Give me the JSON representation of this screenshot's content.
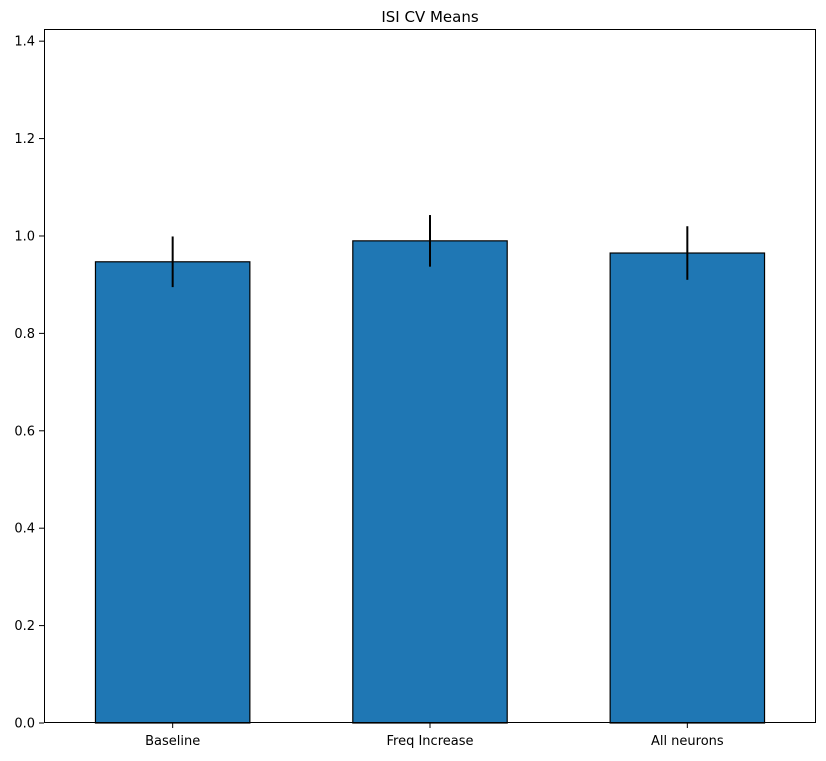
{
  "chart_data": {
    "type": "bar",
    "title": "ISI CV Means",
    "xlabel": "",
    "ylabel": "",
    "categories": [
      "Baseline",
      "Freq Increase",
      "All neurons"
    ],
    "values": [
      0.947,
      0.99,
      0.965
    ],
    "errors": [
      0.052,
      0.053,
      0.055
    ],
    "ylim": [
      0,
      1.425
    ],
    "yticks": [
      0.0,
      0.2,
      0.4,
      0.6,
      0.8,
      1.0,
      1.2,
      1.4
    ],
    "ytick_labels": [
      "0.0",
      "0.2",
      "0.4",
      "0.6",
      "0.8",
      "1.0",
      "1.2",
      "1.4"
    ],
    "grid": false,
    "bar_color": "#1f77b4",
    "edge_color": "#000000",
    "error_color": "#000000"
  }
}
